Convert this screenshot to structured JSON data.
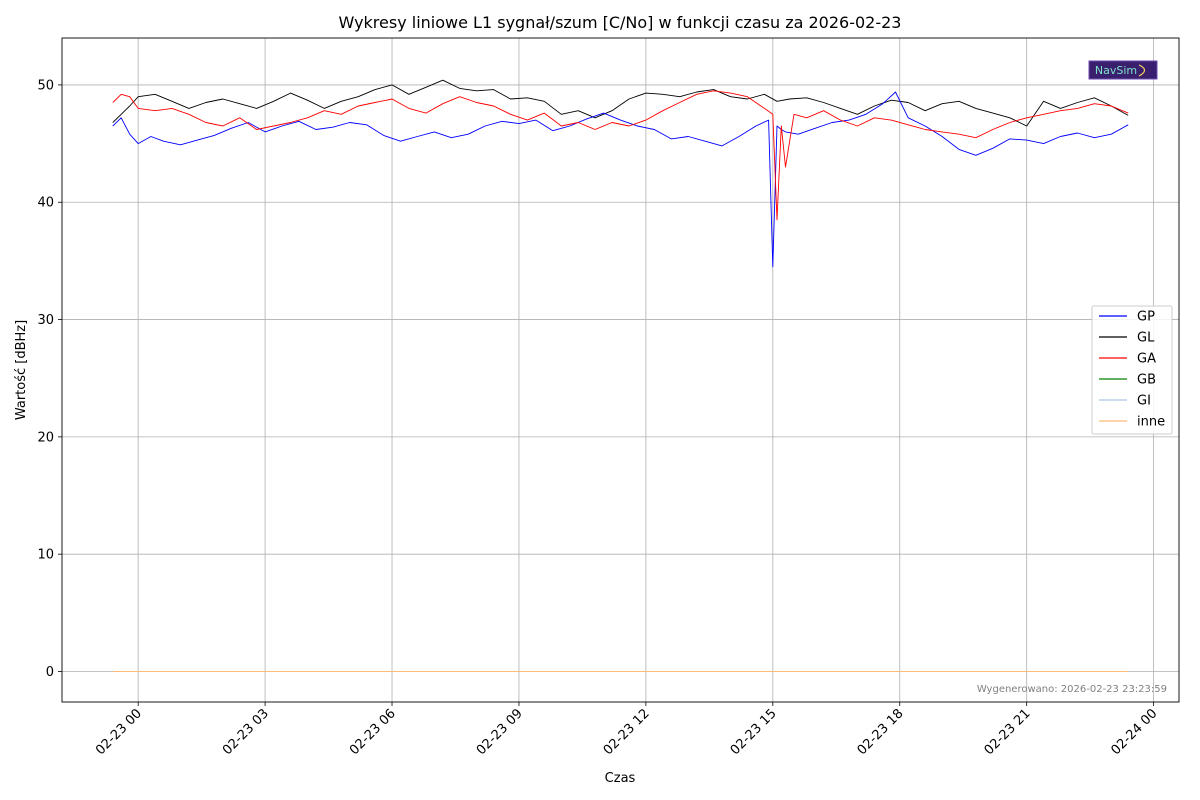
{
  "chart_data": {
    "type": "line",
    "title": "Wykresy liniowe L1 sygnał/szum [C/No] w funkcji czasu za 2026-02-23",
    "xlabel": "Czas",
    "ylabel": "Wartość [dBHz]",
    "x_ticks": [
      "02-23 00",
      "02-23 03",
      "02-23 06",
      "02-23 09",
      "02-23 12",
      "02-23 15",
      "02-23 18",
      "02-23 21",
      "02-24 00"
    ],
    "x_tick_hours": [
      0,
      3,
      6,
      9,
      12,
      15,
      18,
      21,
      24
    ],
    "xlim_hours": [
      -1.8,
      24.6
    ],
    "y_ticks": [
      0,
      10,
      20,
      30,
      40,
      50
    ],
    "ylim": [
      -2.6,
      54
    ],
    "grid": true,
    "legend_position": "center-right",
    "footer_note": "Wygenerowano: 2026-02-23 23:23:59",
    "logo_text": "NavSim",
    "series": [
      {
        "name": "GP",
        "color": "#0000ff",
        "x_hours": [
          -0.6,
          -0.4,
          -0.2,
          0,
          0.3,
          0.6,
          1,
          1.4,
          1.8,
          2.2,
          2.6,
          3,
          3.4,
          3.8,
          4.2,
          4.6,
          5,
          5.4,
          5.8,
          6.2,
          6.6,
          7,
          7.4,
          7.8,
          8.2,
          8.6,
          9,
          9.4,
          9.8,
          10.2,
          10.6,
          11,
          11.4,
          11.8,
          12.2,
          12.6,
          13,
          13.4,
          13.8,
          14.2,
          14.6,
          14.9,
          15.0,
          15.1,
          15.2,
          15.3,
          15.6,
          16,
          16.4,
          16.8,
          17.2,
          17.6,
          17.9,
          18.2,
          18.6,
          19,
          19.4,
          19.8,
          20.2,
          20.6,
          21,
          21.4,
          21.8,
          22.2,
          22.6,
          23,
          23.4
        ],
        "values": [
          46.5,
          47.2,
          45.8,
          45.0,
          45.6,
          45.2,
          44.9,
          45.3,
          45.7,
          46.3,
          46.8,
          46.0,
          46.5,
          46.9,
          46.2,
          46.4,
          46.8,
          46.6,
          45.7,
          45.2,
          45.6,
          46.0,
          45.5,
          45.8,
          46.5,
          46.9,
          46.7,
          47.0,
          46.1,
          46.5,
          47.1,
          47.6,
          47.0,
          46.5,
          46.2,
          45.4,
          45.6,
          45.2,
          44.8,
          45.6,
          46.5,
          47.0,
          34.5,
          46.5,
          46.2,
          46.0,
          45.8,
          46.3,
          46.8,
          47.0,
          47.5,
          48.4,
          49.4,
          47.2,
          46.5,
          45.6,
          44.5,
          44.0,
          44.6,
          45.4,
          45.3,
          45.0,
          45.6,
          45.9,
          45.5,
          45.8,
          46.6
        ]
      },
      {
        "name": "GL",
        "color": "#000000",
        "x_hours": [
          -0.6,
          -0.4,
          -0.2,
          0,
          0.4,
          0.8,
          1.2,
          1.6,
          2,
          2.4,
          2.8,
          3.2,
          3.6,
          4,
          4.4,
          4.8,
          5.2,
          5.6,
          6,
          6.4,
          6.8,
          7.2,
          7.6,
          8,
          8.4,
          8.8,
          9.2,
          9.6,
          10,
          10.4,
          10.8,
          11.2,
          11.6,
          12,
          12.4,
          12.8,
          13.2,
          13.6,
          14,
          14.4,
          14.8,
          15.1,
          15.4,
          15.8,
          16.2,
          16.6,
          17,
          17.4,
          17.8,
          18.2,
          18.6,
          19,
          19.4,
          19.8,
          20.2,
          20.6,
          21,
          21.4,
          21.8,
          22.2,
          22.6,
          23,
          23.4
        ],
        "values": [
          46.8,
          47.5,
          48.2,
          49.0,
          49.2,
          48.6,
          48.0,
          48.5,
          48.8,
          48.4,
          48.0,
          48.6,
          49.3,
          48.7,
          48.0,
          48.6,
          49.0,
          49.6,
          50.0,
          49.2,
          49.8,
          50.4,
          49.7,
          49.5,
          49.6,
          48.8,
          48.9,
          48.6,
          47.5,
          47.8,
          47.2,
          47.8,
          48.8,
          49.3,
          49.2,
          49.0,
          49.4,
          49.6,
          49.0,
          48.8,
          49.2,
          48.6,
          48.8,
          48.9,
          48.5,
          48.0,
          47.5,
          48.2,
          48.7,
          48.5,
          47.8,
          48.4,
          48.6,
          48.0,
          47.6,
          47.2,
          46.5,
          48.6,
          48.0,
          48.5,
          48.9,
          48.2,
          47.4
        ]
      },
      {
        "name": "GA",
        "color": "#ff0000",
        "x_hours": [
          -0.6,
          -0.4,
          -0.2,
          0,
          0.4,
          0.8,
          1.2,
          1.6,
          2,
          2.4,
          2.8,
          3.2,
          3.6,
          4,
          4.4,
          4.8,
          5.2,
          5.6,
          6,
          6.4,
          6.8,
          7.2,
          7.6,
          8,
          8.4,
          8.8,
          9.2,
          9.6,
          10,
          10.4,
          10.8,
          11.2,
          11.6,
          12,
          12.4,
          12.8,
          13.2,
          13.6,
          14,
          14.4,
          14.8,
          15.0,
          15.1,
          15.2,
          15.3,
          15.5,
          15.8,
          16.2,
          16.6,
          17,
          17.4,
          17.8,
          18.2,
          18.6,
          19,
          19.4,
          19.8,
          20.2,
          20.6,
          21,
          21.4,
          21.8,
          22.2,
          22.6,
          23,
          23.4
        ],
        "values": [
          48.5,
          49.2,
          49.0,
          48.0,
          47.8,
          48.0,
          47.5,
          46.8,
          46.5,
          47.2,
          46.2,
          46.5,
          46.8,
          47.2,
          47.8,
          47.5,
          48.2,
          48.5,
          48.8,
          48.0,
          47.6,
          48.4,
          49.0,
          48.5,
          48.2,
          47.5,
          47.0,
          47.6,
          46.5,
          46.8,
          46.2,
          46.8,
          46.5,
          47.0,
          47.8,
          48.5,
          49.2,
          49.5,
          49.3,
          49.0,
          48.0,
          47.5,
          38.5,
          46.5,
          43.0,
          47.5,
          47.2,
          47.8,
          47.0,
          46.5,
          47.2,
          47.0,
          46.6,
          46.2,
          46.0,
          45.8,
          45.5,
          46.2,
          46.8,
          47.2,
          47.5,
          47.8,
          48.0,
          48.4,
          48.2,
          47.6
        ]
      },
      {
        "name": "GB",
        "color": "#008000",
        "x_hours": [
          -0.6,
          23.4
        ],
        "values": [
          0,
          0
        ]
      },
      {
        "name": "GI",
        "color": "#aec7e8",
        "x_hours": [
          -0.6,
          23.4
        ],
        "values": [
          0,
          0
        ]
      },
      {
        "name": "inne",
        "color": "#ffbb78",
        "x_hours": [
          -0.6,
          23.4
        ],
        "values": [
          0,
          0
        ]
      }
    ]
  }
}
